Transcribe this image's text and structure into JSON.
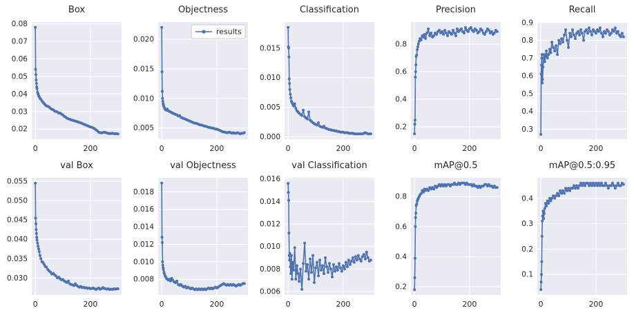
{
  "figure": {
    "background": "#ffffff",
    "axes_background": "#eaeaf2",
    "grid_color": "#ffffff",
    "series_color": "#4c72b0",
    "text_color": "#262626",
    "legend_border_color": "#cccccc",
    "legend_background": "#ffffff"
  },
  "chart_data": {
    "type": "line",
    "series_name": "results",
    "marker": "dot",
    "legend_position": "upper right",
    "xticks": [
      0,
      200
    ],
    "xlim": [
      -13,
      313
    ],
    "x": [
      0,
      1,
      2,
      3,
      4,
      5,
      6,
      8,
      10,
      12,
      14,
      17,
      20,
      24,
      28,
      32,
      36,
      40,
      45,
      50,
      55,
      60,
      65,
      70,
      75,
      80,
      85,
      90,
      95,
      100,
      105,
      110,
      115,
      120,
      125,
      130,
      135,
      140,
      145,
      150,
      155,
      160,
      165,
      170,
      175,
      180,
      185,
      190,
      195,
      200,
      205,
      210,
      215,
      220,
      225,
      230,
      235,
      240,
      245,
      250,
      255,
      260,
      265,
      270,
      275,
      280,
      285,
      290,
      295,
      300
    ],
    "charts": [
      {
        "title": "Box",
        "yticks": [
          0.02,
          0.03,
          0.04,
          0.05,
          0.06,
          0.07,
          0.08
        ],
        "ytick_decimals": 2,
        "ylim": [
          0.0142,
          0.081
        ],
        "values": [
          0.078,
          0.054,
          0.051,
          0.048,
          0.046,
          0.044,
          0.043,
          0.041,
          0.04,
          0.039,
          0.0385,
          0.0375,
          0.037,
          0.036,
          0.0352,
          0.0345,
          0.0338,
          0.0332,
          0.033,
          0.0325,
          0.0318,
          0.0312,
          0.031,
          0.0302,
          0.03,
          0.0297,
          0.029,
          0.0292,
          0.0285,
          0.028,
          0.0272,
          0.0268,
          0.0262,
          0.0258,
          0.0256,
          0.0252,
          0.025,
          0.0248,
          0.0245,
          0.0243,
          0.024,
          0.0238,
          0.0235,
          0.0232,
          0.0228,
          0.0225,
          0.0222,
          0.0218,
          0.0215,
          0.0212,
          0.021,
          0.0206,
          0.0202,
          0.0196,
          0.019,
          0.0182,
          0.018,
          0.0178,
          0.018,
          0.0182,
          0.018,
          0.0178,
          0.0175,
          0.0174,
          0.0175,
          0.0176,
          0.0174,
          0.0173,
          0.0174,
          0.0172
        ]
      },
      {
        "title": "Objectness",
        "legend": "results",
        "yticks": [
          0.005,
          0.01,
          0.015,
          0.02
        ],
        "ytick_decimals": 3,
        "ylim": [
          0.0031,
          0.0229
        ],
        "values": [
          0.022,
          0.0145,
          0.0112,
          0.01,
          0.0095,
          0.0091,
          0.0089,
          0.0086,
          0.0084,
          0.0082,
          0.0081,
          0.008,
          0.0082,
          0.0079,
          0.0078,
          0.0077,
          0.0076,
          0.0075,
          0.0074,
          0.0073,
          0.0072,
          0.007,
          0.0071,
          0.0068,
          0.0067,
          0.0066,
          0.0065,
          0.0064,
          0.0063,
          0.0062,
          0.0061,
          0.006,
          0.0059,
          0.0058,
          0.0058,
          0.0057,
          0.0056,
          0.0055,
          0.0055,
          0.0054,
          0.0053,
          0.0053,
          0.0052,
          0.0051,
          0.0051,
          0.005,
          0.005,
          0.0049,
          0.0048,
          0.0048,
          0.0047,
          0.0046,
          0.0045,
          0.0044,
          0.0043,
          0.0043,
          0.0042,
          0.0042,
          0.0043,
          0.0042,
          0.0041,
          0.0042,
          0.0041,
          0.0041,
          0.0042,
          0.0041,
          0.004,
          0.0041,
          0.0041,
          0.0042
        ]
      },
      {
        "title": "Classification",
        "yticks": [
          0.0,
          0.005,
          0.01,
          0.015
        ],
        "ytick_decimals": 3,
        "ylim": [
          -0.0004,
          0.0194
        ],
        "values": [
          0.0185,
          0.0152,
          0.015,
          0.0135,
          0.0098,
          0.009,
          0.008,
          0.0072,
          0.0066,
          0.006,
          0.0058,
          0.0055,
          0.0052,
          0.0056,
          0.0048,
          0.0044,
          0.0042,
          0.004,
          0.0038,
          0.0036,
          0.0045,
          0.0034,
          0.0032,
          0.003,
          0.0042,
          0.0028,
          0.0026,
          0.0024,
          0.0022,
          0.0021,
          0.002,
          0.0024,
          0.0018,
          0.0017,
          0.0016,
          0.0018,
          0.0015,
          0.0014,
          0.0013,
          0.0012,
          0.0012,
          0.0011,
          0.0011,
          0.001,
          0.001,
          0.0009,
          0.0009,
          0.0008,
          0.0008,
          0.0008,
          0.0007,
          0.0007,
          0.0007,
          0.0006,
          0.0006,
          0.0006,
          0.0006,
          0.0005,
          0.0005,
          0.0005,
          0.0005,
          0.0005,
          0.0005,
          0.0005,
          0.0006,
          0.0007,
          0.0006,
          0.0005,
          0.0005,
          0.0005
        ]
      },
      {
        "title": "Precision",
        "yticks": [
          0.2,
          0.4,
          0.6,
          0.8
        ],
        "ytick_decimals": 1,
        "ylim": [
          0.111,
          0.959
        ],
        "values": [
          0.15,
          0.22,
          0.25,
          0.56,
          0.6,
          0.65,
          0.71,
          0.72,
          0.76,
          0.78,
          0.8,
          0.82,
          0.84,
          0.83,
          0.86,
          0.85,
          0.87,
          0.84,
          0.88,
          0.91,
          0.86,
          0.88,
          0.85,
          0.86,
          0.88,
          0.87,
          0.89,
          0.9,
          0.88,
          0.89,
          0.87,
          0.9,
          0.88,
          0.86,
          0.89,
          0.88,
          0.87,
          0.9,
          0.88,
          0.86,
          0.91,
          0.89,
          0.9,
          0.91,
          0.89,
          0.88,
          0.92,
          0.9,
          0.89,
          0.91,
          0.92,
          0.9,
          0.89,
          0.91,
          0.9,
          0.88,
          0.89,
          0.91,
          0.9,
          0.88,
          0.87,
          0.89,
          0.91,
          0.9,
          0.88,
          0.89,
          0.87,
          0.88,
          0.9,
          0.89
        ]
      },
      {
        "title": "Recall",
        "yticks": [
          0.3,
          0.4,
          0.5,
          0.6,
          0.7,
          0.8,
          0.9
        ],
        "ytick_decimals": 1,
        "ylim": [
          0.243,
          0.903
        ],
        "values": [
          0.27,
          0.61,
          0.66,
          0.7,
          0.72,
          0.56,
          0.58,
          0.65,
          0.7,
          0.72,
          0.68,
          0.71,
          0.74,
          0.7,
          0.72,
          0.75,
          0.73,
          0.79,
          0.76,
          0.74,
          0.77,
          0.72,
          0.8,
          0.78,
          0.81,
          0.79,
          0.83,
          0.86,
          0.8,
          0.76,
          0.84,
          0.82,
          0.86,
          0.83,
          0.81,
          0.84,
          0.85,
          0.83,
          0.86,
          0.84,
          0.8,
          0.85,
          0.86,
          0.84,
          0.87,
          0.85,
          0.83,
          0.86,
          0.85,
          0.84,
          0.86,
          0.85,
          0.87,
          0.84,
          0.82,
          0.85,
          0.84,
          0.86,
          0.85,
          0.83,
          0.84,
          0.86,
          0.85,
          0.87,
          0.84,
          0.85,
          0.83,
          0.82,
          0.84,
          0.82
        ]
      },
      {
        "title": "val Box",
        "yticks": [
          0.03,
          0.035,
          0.04,
          0.045,
          0.05,
          0.055
        ],
        "ytick_decimals": 3,
        "ylim": [
          0.0256,
          0.0559
        ],
        "values": [
          0.0545,
          0.0455,
          0.044,
          0.0425,
          0.0415,
          0.0405,
          0.0398,
          0.039,
          0.0382,
          0.0375,
          0.0368,
          0.0358,
          0.035,
          0.0342,
          0.034,
          0.0335,
          0.033,
          0.0328,
          0.0322,
          0.0318,
          0.0315,
          0.031,
          0.0312,
          0.0308,
          0.0305,
          0.03,
          0.0302,
          0.0298,
          0.0295,
          0.0296,
          0.0292,
          0.029,
          0.0288,
          0.0292,
          0.0285,
          0.0283,
          0.0282,
          0.028,
          0.0285,
          0.0281,
          0.0278,
          0.0276,
          0.0278,
          0.0275,
          0.0276,
          0.0274,
          0.0275,
          0.0273,
          0.0274,
          0.0272,
          0.0273,
          0.0274,
          0.0272,
          0.027,
          0.0272,
          0.0274,
          0.0271,
          0.0272,
          0.0275,
          0.0273,
          0.0272,
          0.0271,
          0.0272,
          0.027,
          0.0271,
          0.027,
          0.0272,
          0.0271,
          0.0272,
          0.0272
        ]
      },
      {
        "title": "val Objectness",
        "yticks": [
          0.008,
          0.01,
          0.012,
          0.014,
          0.016,
          0.018
        ],
        "ytick_decimals": 3,
        "ylim": [
          0.0062,
          0.0196
        ],
        "values": [
          0.019,
          0.0128,
          0.0122,
          0.01,
          0.0096,
          0.0093,
          0.0091,
          0.0088,
          0.0086,
          0.0084,
          0.0083,
          0.0081,
          0.008,
          0.0079,
          0.008,
          0.0078,
          0.0081,
          0.0079,
          0.0077,
          0.0076,
          0.0078,
          0.0074,
          0.0073,
          0.0074,
          0.0072,
          0.0071,
          0.0072,
          0.007,
          0.0071,
          0.007,
          0.0069,
          0.007,
          0.0069,
          0.0068,
          0.0069,
          0.0068,
          0.0069,
          0.0068,
          0.0069,
          0.0068,
          0.0069,
          0.0068,
          0.0069,
          0.007,
          0.0069,
          0.007,
          0.0069,
          0.007,
          0.0071,
          0.007,
          0.0071,
          0.0072,
          0.0073,
          0.0074,
          0.0075,
          0.0074,
          0.0073,
          0.0074,
          0.0073,
          0.0074,
          0.0073,
          0.0074,
          0.0073,
          0.0072,
          0.0073,
          0.0074,
          0.0073,
          0.0074,
          0.0075,
          0.0075
        ]
      },
      {
        "title": "val Classification",
        "yticks": [
          0.006,
          0.008,
          0.01,
          0.012,
          0.014,
          0.016
        ],
        "ytick_decimals": 3,
        "ylim": [
          0.0057,
          0.0161
        ],
        "values": [
          0.0156,
          0.0148,
          0.0141,
          0.0112,
          0.0092,
          0.0088,
          0.0094,
          0.0082,
          0.0076,
          0.0092,
          0.0071,
          0.0086,
          0.0079,
          0.0099,
          0.0071,
          0.0083,
          0.0076,
          0.0069,
          0.008,
          0.0062,
          0.0085,
          0.0103,
          0.0078,
          0.0084,
          0.0071,
          0.0089,
          0.0077,
          0.0092,
          0.0068,
          0.0081,
          0.0086,
          0.0074,
          0.0088,
          0.0079,
          0.0083,
          0.0076,
          0.009,
          0.0082,
          0.0077,
          0.0085,
          0.008,
          0.0073,
          0.0084,
          0.0078,
          0.0082,
          0.0079,
          0.0085,
          0.0081,
          0.0078,
          0.0083,
          0.008,
          0.0086,
          0.0082,
          0.0088,
          0.0084,
          0.0087,
          0.009,
          0.0086,
          0.0091,
          0.0088,
          0.0092,
          0.0089,
          0.0087,
          0.0091,
          0.0093,
          0.0089,
          0.0095,
          0.009,
          0.0087,
          0.0088
        ]
      },
      {
        "title": "mAP@0.5",
        "yticks": [
          0.2,
          0.4,
          0.6,
          0.8
        ],
        "ytick_decimals": 1,
        "ylim": [
          0.145,
          0.925
        ],
        "values": [
          0.18,
          0.26,
          0.39,
          0.6,
          0.66,
          0.69,
          0.74,
          0.75,
          0.77,
          0.78,
          0.79,
          0.8,
          0.81,
          0.82,
          0.84,
          0.83,
          0.85,
          0.84,
          0.85,
          0.84,
          0.86,
          0.85,
          0.86,
          0.85,
          0.87,
          0.86,
          0.87,
          0.88,
          0.87,
          0.88,
          0.87,
          0.88,
          0.87,
          0.88,
          0.88,
          0.87,
          0.88,
          0.88,
          0.89,
          0.88,
          0.88,
          0.89,
          0.88,
          0.89,
          0.89,
          0.89,
          0.88,
          0.89,
          0.88,
          0.88,
          0.88,
          0.87,
          0.88,
          0.87,
          0.87,
          0.86,
          0.87,
          0.86,
          0.87,
          0.87,
          0.88,
          0.88,
          0.87,
          0.88,
          0.87,
          0.87,
          0.86,
          0.87,
          0.86,
          0.86
        ]
      },
      {
        "title": "mAP@0.5:0.95",
        "yticks": [
          0.1,
          0.2,
          0.3,
          0.4
        ],
        "ytick_decimals": 1,
        "ylim": [
          0.019,
          0.481
        ],
        "values": [
          0.04,
          0.07,
          0.1,
          0.15,
          0.25,
          0.31,
          0.33,
          0.35,
          0.32,
          0.34,
          0.36,
          0.38,
          0.37,
          0.39,
          0.38,
          0.4,
          0.39,
          0.4,
          0.41,
          0.4,
          0.41,
          0.42,
          0.41,
          0.43,
          0.42,
          0.43,
          0.42,
          0.44,
          0.43,
          0.44,
          0.43,
          0.44,
          0.44,
          0.45,
          0.44,
          0.45,
          0.44,
          0.45,
          0.46,
          0.45,
          0.46,
          0.45,
          0.46,
          0.46,
          0.45,
          0.46,
          0.45,
          0.46,
          0.45,
          0.46,
          0.45,
          0.46,
          0.45,
          0.46,
          0.45,
          0.45,
          0.46,
          0.45,
          0.44,
          0.45,
          0.45,
          0.46,
          0.45,
          0.44,
          0.45,
          0.46,
          0.45,
          0.45,
          0.46,
          0.455
        ]
      }
    ]
  }
}
